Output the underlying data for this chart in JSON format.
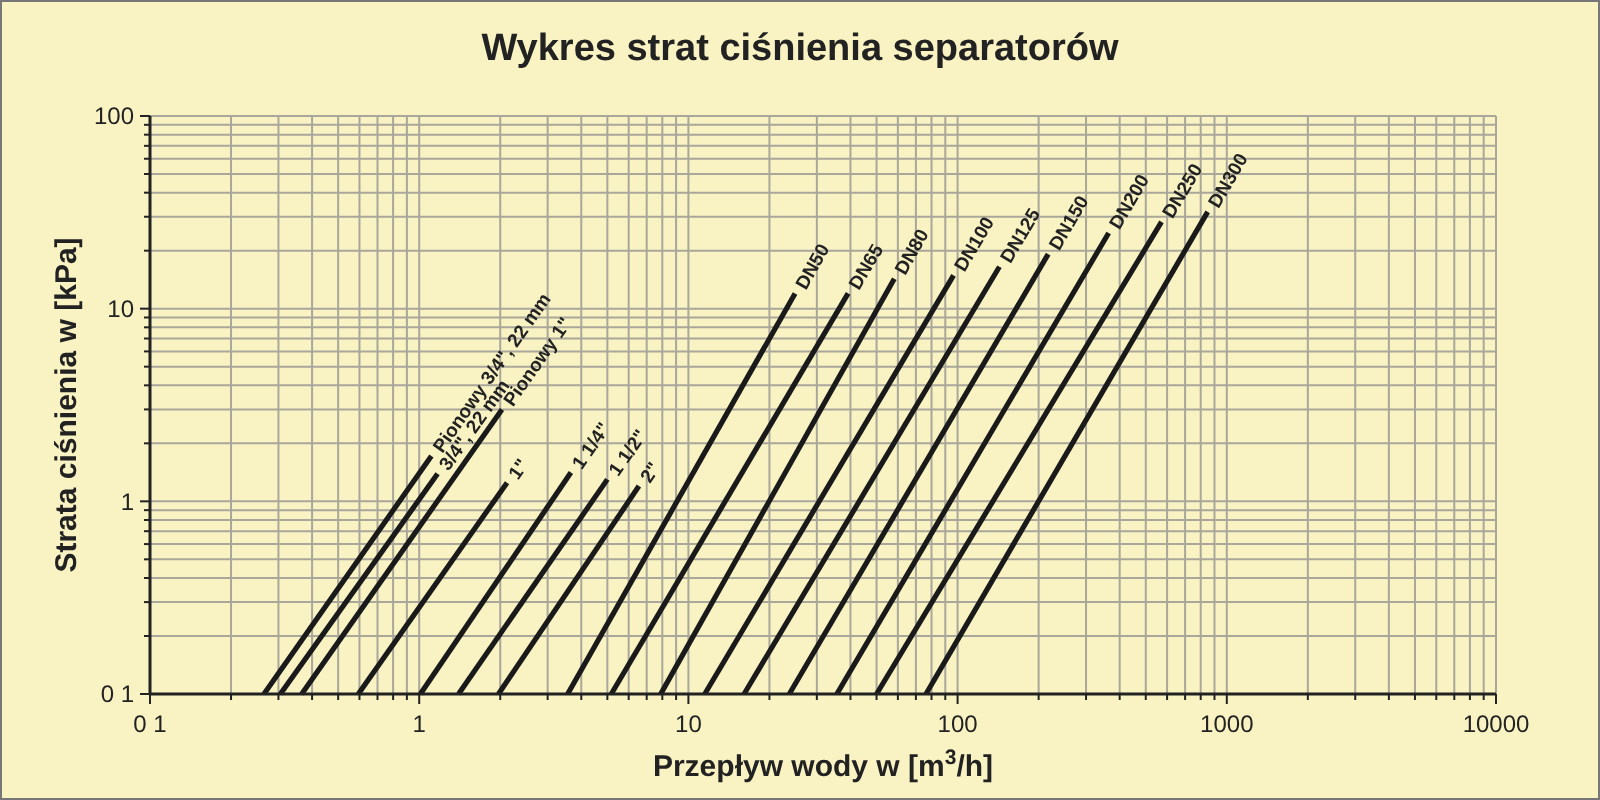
{
  "chart_data": {
    "type": "line",
    "title": "Wykres strat ciśnienia separatorów",
    "xlabel": "Przepływ wody w [m$^{3}$/h]",
    "ylabel": "Strata ciśnienia w [kPa]",
    "log": "xy",
    "grid": true,
    "marker": "none",
    "line_style": "solid",
    "xlim": [
      0.1,
      10000
    ],
    "ylim": [
      0.1,
      100
    ],
    "xticks": [
      {
        "value": 0.1,
        "label": "0 1"
      },
      {
        "value": 0.2,
        "label": null
      },
      {
        "value": 0.3,
        "label": null
      },
      {
        "value": 0.4,
        "label": null
      },
      {
        "value": 0.5,
        "label": null
      },
      {
        "value": 0.6,
        "label": null
      },
      {
        "value": 0.7,
        "label": null
      },
      {
        "value": 0.8,
        "label": null
      },
      {
        "value": 0.9,
        "label": null
      },
      1,
      {
        "value": 2,
        "label": null
      },
      {
        "value": 3,
        "label": null
      },
      {
        "value": 4,
        "label": null
      },
      {
        "value": 5,
        "label": null
      },
      {
        "value": 6,
        "label": null
      },
      {
        "value": 7,
        "label": null
      },
      {
        "value": 8,
        "label": null
      },
      {
        "value": 9,
        "label": null
      },
      10,
      {
        "value": 20,
        "label": null
      },
      {
        "value": 30,
        "label": null
      },
      {
        "value": 40,
        "label": null
      },
      {
        "value": 50,
        "label": null
      },
      {
        "value": 60,
        "label": null
      },
      {
        "value": 70,
        "label": null
      },
      {
        "value": 80,
        "label": null
      },
      {
        "value": 90,
        "label": null
      },
      100,
      {
        "value": 200,
        "label": null
      },
      {
        "value": 300,
        "label": null
      },
      {
        "value": 400,
        "label": null
      },
      {
        "value": 500,
        "label": null
      },
      {
        "value": 600,
        "label": null
      },
      {
        "value": 700,
        "label": null
      },
      {
        "value": 800,
        "label": null
      },
      {
        "value": 900,
        "label": null
      },
      1000,
      {
        "value": 2000,
        "label": null
      },
      {
        "value": 3000,
        "label": null
      },
      {
        "value": 4000,
        "label": null
      },
      {
        "value": 5000,
        "label": null
      },
      {
        "value": 6000,
        "label": null
      },
      {
        "value": 7000,
        "label": null
      },
      {
        "value": 8000,
        "label": null
      },
      {
        "value": 9000,
        "label": null
      },
      10000
    ],
    "yticks": [
      {
        "value": 0.1,
        "label": "0 1"
      },
      {
        "value": 0.2,
        "label": null
      },
      {
        "value": 0.3,
        "label": null
      },
      {
        "value": 0.4,
        "label": null
      },
      {
        "value": 0.5,
        "label": null
      },
      {
        "value": 0.6,
        "label": null
      },
      {
        "value": 0.7,
        "label": null
      },
      {
        "value": 0.8,
        "label": null
      },
      {
        "value": 0.9,
        "label": null
      },
      1,
      {
        "value": 2,
        "label": null
      },
      {
        "value": 3,
        "label": null
      },
      {
        "value": 4,
        "label": null
      },
      {
        "value": 5,
        "label": null
      },
      {
        "value": 6,
        "label": null
      },
      {
        "value": 7,
        "label": null
      },
      {
        "value": 8,
        "label": null
      },
      {
        "value": 9,
        "label": null
      },
      10,
      {
        "value": 20,
        "label": null
      },
      {
        "value": 30,
        "label": null
      },
      {
        "value": 40,
        "label": null
      },
      {
        "value": 50,
        "label": null
      },
      {
        "value": 60,
        "label": null
      },
      {
        "value": 70,
        "label": null
      },
      {
        "value": 80,
        "label": null
      },
      {
        "value": 90,
        "label": null
      },
      100
    ],
    "series": [
      {
        "name": "Pionowy 3/4\", 22 mm",
        "color": "#1a1a1a",
        "x": [
          0.265,
          1.11
        ],
        "values": [
          0.1,
          1.72
        ]
      },
      {
        "name": "3/4\", 22 mm",
        "color": "#1a1a1a",
        "x": [
          0.305,
          1.17
        ],
        "values": [
          0.1,
          1.39
        ]
      },
      {
        "name": "Pionowy 1\"",
        "color": "#1a1a1a",
        "x": [
          0.366,
          2.03
        ],
        "values": [
          0.1,
          3.0
        ]
      },
      {
        "name": "1\"",
        "color": "#1a1a1a",
        "x": [
          0.594,
          2.12
        ],
        "values": [
          0.1,
          1.25
        ]
      },
      {
        "name": "1 1/4\"",
        "color": "#1a1a1a",
        "x": [
          1.01,
          3.66
        ],
        "values": [
          0.1,
          1.41
        ]
      },
      {
        "name": "1 1/2\"",
        "color": "#1a1a1a",
        "x": [
          1.4,
          5.0
        ],
        "values": [
          0.1,
          1.3
        ]
      },
      {
        "name": "2\"",
        "color": "#1a1a1a",
        "x": [
          1.97,
          6.55
        ],
        "values": [
          0.1,
          1.2
        ]
      },
      {
        "name": "DN50",
        "color": "#1a1a1a",
        "x": [
          3.56,
          24.9
        ],
        "values": [
          0.1,
          12.0
        ]
      },
      {
        "name": "DN65",
        "color": "#1a1a1a",
        "x": [
          5.17,
          39.2
        ],
        "values": [
          0.1,
          12.0
        ]
      },
      {
        "name": "DN80",
        "color": "#1a1a1a",
        "x": [
          7.89,
          58.2
        ],
        "values": [
          0.1,
          14.3
        ]
      },
      {
        "name": "DN100",
        "color": "#1a1a1a",
        "x": [
          11.5,
          96.6
        ],
        "values": [
          0.1,
          14.9
        ]
      },
      {
        "name": "DN125",
        "color": "#1a1a1a",
        "x": [
          16.1,
          143
        ],
        "values": [
          0.1,
          16.5
        ]
      },
      {
        "name": "DN150",
        "color": "#1a1a1a",
        "x": [
          23.7,
          217
        ],
        "values": [
          0.1,
          19.2
        ]
      },
      {
        "name": "DN200",
        "color": "#1a1a1a",
        "x": [
          35.6,
          364
        ],
        "values": [
          0.1,
          24.7
        ]
      },
      {
        "name": "DN250",
        "color": "#1a1a1a",
        "x": [
          50,
          572
        ],
        "values": [
          0.1,
          28.2
        ]
      },
      {
        "name": "DN300",
        "color": "#1a1a1a",
        "x": [
          76.3,
          849
        ],
        "values": [
          0.1,
          31.8
        ]
      }
    ]
  }
}
